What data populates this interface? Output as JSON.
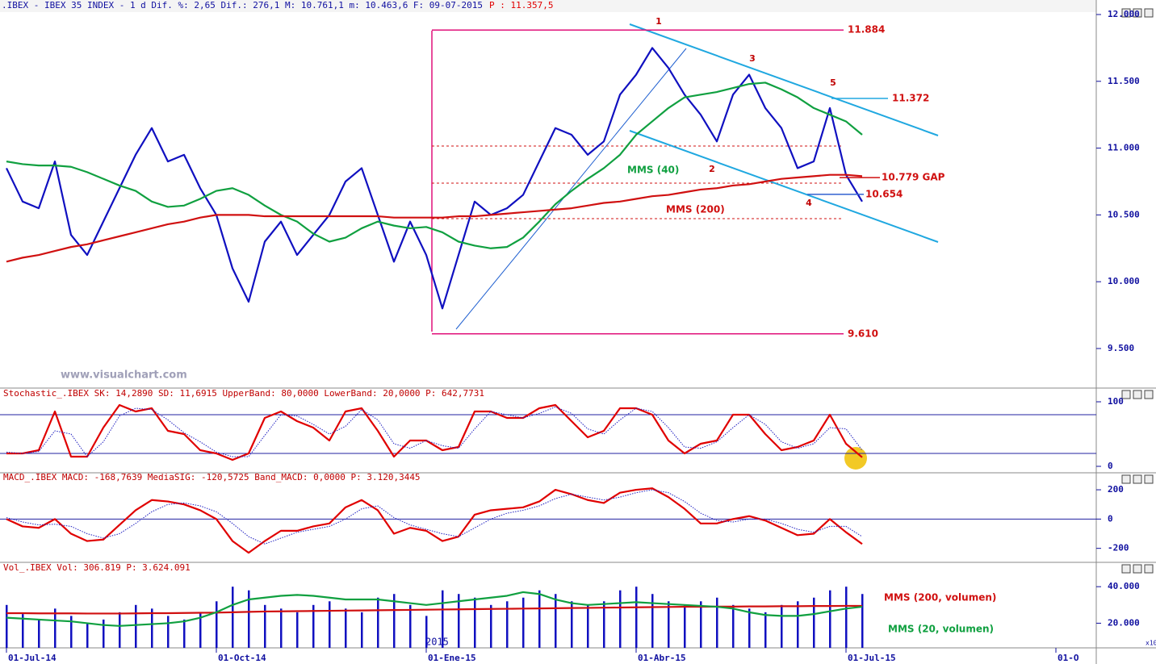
{
  "header": {
    "symbol": ".IBEX - IBEX 35 INDEX -   1 d Dif. %: 2,65 Dif.: 276,1 M: 10.761,1 m: 10.463,6 F: 09-07-2015",
    "price": "P : 11.357,5"
  },
  "watermark": "www.visualchart.com",
  "year_marker": "2015",
  "scale_note": "x10",
  "wave_labels": [
    "1",
    "2",
    "3",
    "4",
    "5"
  ],
  "chart_data": [
    {
      "type": "line",
      "categories": [
        "01-Jul-14",
        null,
        null,
        null,
        null,
        null,
        null,
        null,
        null,
        null,
        null,
        null,
        null,
        "01-Oct-14",
        null,
        null,
        null,
        null,
        null,
        null,
        null,
        null,
        null,
        null,
        null,
        null,
        "01-Ene-15",
        null,
        null,
        null,
        null,
        null,
        null,
        null,
        null,
        null,
        null,
        null,
        null,
        "01-Abr-15",
        null,
        null,
        null,
        null,
        null,
        null,
        null,
        null,
        null,
        null,
        null,
        null,
        "01-Jul-15",
        null,
        null,
        null,
        null,
        null,
        null,
        null,
        null,
        null,
        null,
        null,
        null,
        "01-O"
      ],
      "ylim": [
        9210,
        12012
      ],
      "yticks": [
        {
          "value": 9500,
          "label": "9.500"
        },
        {
          "value": 10000,
          "label": "10.000"
        },
        {
          "value": 10500,
          "label": "10.500"
        },
        {
          "value": 11000,
          "label": "11.000"
        },
        {
          "value": 11500,
          "label": "11.500"
        },
        {
          "value": 12000,
          "label": "12.000"
        }
      ],
      "series": [
        {
          "color": "#1010c0",
          "values": [
            10850,
            10600,
            10550,
            10900,
            10350,
            10200,
            10450,
            10700,
            10950,
            11150,
            10900,
            10950,
            10700,
            10500,
            10100,
            9850,
            10300,
            10450,
            10200,
            10350,
            10500,
            10750,
            10850,
            10500,
            10150,
            10450,
            10200,
            9800,
            10200,
            10600,
            10500,
            10550,
            10650,
            10900,
            11150,
            11100,
            10950,
            11050,
            11400,
            11550,
            11750,
            11600,
            11400,
            11250,
            11050,
            11400,
            11550,
            11300,
            11150,
            10850,
            10900,
            11300,
            10800,
            10600,
            null,
            null,
            null,
            null,
            null,
            null,
            null,
            null,
            null,
            null,
            null,
            null
          ]
        },
        {
          "name": "MMS (40)",
          "color": "#10a040",
          "values": [
            10900,
            10880,
            10870,
            10870,
            10860,
            10820,
            10770,
            10720,
            10680,
            10600,
            10560,
            10570,
            10620,
            10680,
            10700,
            10650,
            10570,
            10500,
            10450,
            10360,
            10300,
            10330,
            10400,
            10450,
            10420,
            10400,
            10410,
            10370,
            10300,
            10270,
            10250,
            10260,
            10330,
            10450,
            10580,
            10680,
            10770,
            10850,
            10950,
            11100,
            11200,
            11300,
            11380,
            11400,
            11420,
            11450,
            11480,
            11490,
            11440,
            11380,
            11300,
            11250,
            11200,
            11100,
            null,
            null,
            null,
            null,
            null,
            null,
            null,
            null,
            null,
            null,
            null,
            null
          ]
        },
        {
          "name": "MMS (200)",
          "color": "#d01010",
          "values": [
            10150,
            10180,
            10200,
            10230,
            10260,
            10280,
            10310,
            10340,
            10370,
            10400,
            10430,
            10450,
            10480,
            10500,
            10500,
            10500,
            10490,
            10490,
            10490,
            10490,
            10490,
            10490,
            10490,
            10490,
            10480,
            10480,
            10480,
            10480,
            10490,
            10490,
            10500,
            10510,
            10520,
            10530,
            10540,
            10550,
            10570,
            10590,
            10600,
            10620,
            10640,
            10650,
            10670,
            10690,
            10700,
            10720,
            10730,
            10750,
            10770,
            10780,
            10790,
            10800,
            10800,
            10790,
            null,
            null,
            null,
            null,
            null,
            null,
            null,
            null,
            null,
            null,
            null,
            null
          ]
        }
      ],
      "levels": [
        {
          "value": 11884,
          "label": "11.884",
          "color": "#e0107a"
        },
        {
          "value": 11372,
          "label": "11.372",
          "color": "#20a8e0"
        },
        {
          "value": 10779,
          "label": "10.779 GAP",
          "color": "#d01010"
        },
        {
          "value": 10654,
          "label": "10.654",
          "color": "#3060d0"
        },
        {
          "value": 9610,
          "label": "9.610",
          "color": "#e0107a"
        }
      ]
    },
    {
      "type": "line",
      "title": "Stochastic_.IBEX SK: 14,2890 SD: 11,6915 UpperBand: 80,0000 LowerBand: 20,0000 P: 642,7731",
      "ylim": [
        -10,
        118.75
      ],
      "yticks": [
        0,
        100
      ],
      "bands": [
        80,
        20
      ],
      "series": [
        {
          "color": "#e00000",
          "values": [
            20,
            20,
            25,
            85,
            15,
            15,
            60,
            95,
            85,
            90,
            55,
            50,
            25,
            20,
            10,
            20,
            75,
            85,
            70,
            60,
            40,
            85,
            90,
            55,
            15,
            40,
            40,
            25,
            30,
            85,
            85,
            75,
            75,
            90,
            95,
            70,
            45,
            55,
            90,
            90,
            80,
            40,
            20,
            35,
            40,
            80,
            80,
            50,
            25,
            30,
            40,
            80,
            35,
            14,
            null,
            null,
            null,
            null,
            null,
            null,
            null,
            null,
            null,
            null,
            null,
            null
          ]
        },
        {
          "color": "#2020c0",
          "line_style": "dotted",
          "values": [
            22,
            20,
            23,
            55,
            50,
            15,
            38,
            78,
            90,
            88,
            72,
            52,
            38,
            22,
            15,
            15,
            48,
            80,
            78,
            65,
            50,
            62,
            88,
            72,
            35,
            28,
            40,
            32,
            28,
            58,
            85,
            80,
            75,
            82,
            92,
            82,
            58,
            50,
            72,
            90,
            85,
            60,
            30,
            28,
            38,
            60,
            80,
            65,
            38,
            28,
            35,
            60,
            58,
            25,
            null,
            null,
            null,
            null,
            null,
            null,
            null,
            null,
            null,
            null,
            null,
            null
          ]
        }
      ]
    },
    {
      "type": "line",
      "title": "MACD_.IBEX MACD: -168,7639 MediaSIG: -120,5725 Band_MACD: 0,0000 P: 3.120,3445",
      "ylim": [
        -290,
        305
      ],
      "yticks": [
        -200,
        0,
        200
      ],
      "bands": [
        0
      ],
      "series": [
        {
          "color": "#e00000",
          "values": [
            0,
            -50,
            -60,
            0,
            -100,
            -150,
            -140,
            -40,
            60,
            130,
            120,
            100,
            60,
            0,
            -150,
            -230,
            -150,
            -80,
            -80,
            -50,
            -30,
            80,
            130,
            60,
            -100,
            -60,
            -80,
            -150,
            -120,
            30,
            60,
            70,
            80,
            120,
            200,
            170,
            130,
            110,
            180,
            200,
            210,
            150,
            70,
            -30,
            -30,
            0,
            20,
            -10,
            -60,
            -110,
            -100,
            0,
            -90,
            -170,
            null,
            null,
            null,
            null,
            null,
            null,
            null,
            null,
            null,
            null,
            null,
            null
          ]
        },
        {
          "color": "#2020c0",
          "line_style": "dotted",
          "values": [
            10,
            -20,
            -40,
            -35,
            -50,
            -100,
            -130,
            -100,
            -30,
            50,
            100,
            110,
            90,
            50,
            -30,
            -120,
            -170,
            -130,
            -90,
            -70,
            -50,
            0,
            70,
            90,
            10,
            -40,
            -70,
            -100,
            -120,
            -60,
            0,
            40,
            60,
            90,
            140,
            170,
            150,
            130,
            150,
            180,
            200,
            180,
            120,
            40,
            -10,
            -20,
            0,
            0,
            -30,
            -70,
            -90,
            -50,
            -50,
            -120,
            null,
            null,
            null,
            null,
            null,
            null,
            null,
            null,
            null,
            null,
            null,
            null
          ]
        }
      ]
    },
    {
      "type": "bar",
      "title": "Vol_.IBEX Vol: 306.819 P: 3.624.091",
      "ylim": [
        6500,
        52000
      ],
      "yticks": [
        {
          "value": 20000,
          "label": "20.000"
        },
        {
          "value": 40000,
          "label": "40.000"
        }
      ],
      "series": [
        {
          "type": "bar",
          "color": "#1010c0",
          "values": [
            30000,
            25000,
            22000,
            28000,
            24000,
            20000,
            22000,
            26000,
            30000,
            28000,
            24000,
            22000,
            26000,
            32000,
            40000,
            38000,
            30000,
            28000,
            26000,
            30000,
            32000,
            28000,
            26000,
            34000,
            36000,
            30000,
            24000,
            38000,
            36000,
            34000,
            30000,
            32000,
            34000,
            38000,
            36000,
            32000,
            30000,
            32000,
            38000,
            40000,
            36000,
            32000,
            30000,
            32000,
            34000,
            30000,
            28000,
            26000,
            30000,
            32000,
            34000,
            38000,
            40000,
            36000,
            null,
            null,
            null,
            null,
            null,
            null,
            null,
            null,
            null,
            null,
            null,
            null
          ]
        },
        {
          "type": "line",
          "name": "MMS (200, volumen)",
          "color": "#d01010",
          "values": [
            25500,
            25500,
            25400,
            25400,
            25400,
            25300,
            25300,
            25300,
            25400,
            25500,
            25500,
            25600,
            25700,
            25800,
            26000,
            26200,
            26400,
            26500,
            26600,
            26700,
            26800,
            26900,
            27000,
            27100,
            27200,
            27300,
            27400,
            27500,
            27600,
            27700,
            27800,
            27900,
            28000,
            28100,
            28200,
            28300,
            28400,
            28500,
            28600,
            28700,
            28800,
            28900,
            29000,
            29000,
            29100,
            29100,
            29200,
            29200,
            29300,
            29300,
            29400,
            29400,
            29500,
            29500,
            null,
            null,
            null,
            null,
            null,
            null,
            null,
            null,
            null,
            null,
            null,
            null
          ]
        },
        {
          "type": "line",
          "name": "MMS (20, volumen)",
          "color": "#10a040",
          "values": [
            23000,
            22500,
            22000,
            21500,
            21000,
            20000,
            19000,
            18500,
            19000,
            19500,
            20000,
            21000,
            23000,
            26000,
            30000,
            33000,
            34000,
            35000,
            35500,
            35000,
            34000,
            33000,
            33000,
            33000,
            32000,
            31000,
            30000,
            31000,
            32000,
            33000,
            34000,
            35000,
            37000,
            36000,
            33000,
            31000,
            30000,
            30500,
            31000,
            31500,
            31000,
            30500,
            30000,
            29500,
            29000,
            28000,
            26000,
            24500,
            24000,
            24000,
            25000,
            26500,
            28000,
            29000,
            null,
            null,
            null,
            null,
            null,
            null,
            null,
            null,
            null,
            null,
            null,
            null
          ]
        }
      ]
    }
  ]
}
